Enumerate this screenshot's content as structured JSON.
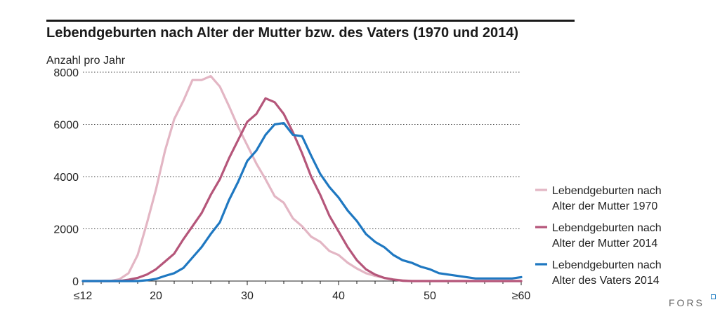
{
  "chart_data": {
    "type": "line",
    "title": "Lebendgeburten nach Alter der Mutter bzw. des Vaters (1970 und 2014)",
    "ylabel": "Anzahl pro Jahr",
    "xlabel": "",
    "ylim": [
      0,
      8000
    ],
    "xlim": [
      12,
      60
    ],
    "yticks": [
      0,
      2000,
      4000,
      6000,
      8000
    ],
    "xticks": [
      {
        "value": 12,
        "label": "≤12"
      },
      {
        "value": 20,
        "label": "20"
      },
      {
        "value": 30,
        "label": "30"
      },
      {
        "value": 40,
        "label": "40"
      },
      {
        "value": 50,
        "label": "50"
      },
      {
        "value": 60,
        "label": "≥60"
      }
    ],
    "grid": "horizontal-dotted",
    "legend_position": "right",
    "x": [
      12,
      13,
      14,
      15,
      16,
      17,
      18,
      19,
      20,
      21,
      22,
      23,
      24,
      25,
      26,
      27,
      28,
      29,
      30,
      31,
      32,
      33,
      34,
      35,
      36,
      37,
      38,
      39,
      40,
      41,
      42,
      43,
      44,
      45,
      46,
      47,
      48,
      49,
      50,
      51,
      52,
      53,
      54,
      55,
      56,
      57,
      58,
      59,
      60
    ],
    "series": [
      {
        "name": "Lebendgeburten nach Alter der Mutter 1970",
        "legend_lines": [
          "Lebendgeburten nach",
          "Alter der Mutter 1970"
        ],
        "color": "#e3b6c4",
        "values": [
          0,
          0,
          0,
          0,
          70,
          300,
          1000,
          2200,
          3500,
          5000,
          6200,
          6900,
          7700,
          7700,
          7850,
          7450,
          6700,
          5900,
          5200,
          4500,
          3900,
          3250,
          3000,
          2400,
          2100,
          1700,
          1500,
          1150,
          1000,
          700,
          480,
          300,
          200,
          120,
          60,
          30,
          0,
          0,
          0,
          0,
          0,
          0,
          0,
          0,
          0,
          0,
          0,
          0,
          0
        ]
      },
      {
        "name": "Lebendgeburten nach Alter der Mutter 2014",
        "legend_lines": [
          "Lebendgeburten nach",
          "Alter der Mutter 2014"
        ],
        "color": "#b5567a",
        "values": [
          0,
          0,
          0,
          0,
          0,
          50,
          120,
          250,
          450,
          750,
          1050,
          1600,
          2100,
          2600,
          3300,
          3900,
          4700,
          5400,
          6100,
          6400,
          7000,
          6850,
          6400,
          5700,
          4900,
          4000,
          3300,
          2500,
          1900,
          1300,
          800,
          450,
          250,
          120,
          60,
          10,
          0,
          0,
          0,
          0,
          0,
          0,
          0,
          0,
          0,
          0,
          0,
          0,
          0
        ]
      },
      {
        "name": "Lebendgeburten nach Alter des Vaters 2014",
        "legend_lines": [
          "Lebendgeburten nach",
          "Alter des Vaters 2014"
        ],
        "color": "#1f78c1",
        "values": [
          0,
          0,
          0,
          0,
          0,
          0,
          0,
          30,
          80,
          200,
          300,
          500,
          900,
          1300,
          1800,
          2250,
          3100,
          3800,
          4600,
          5000,
          5600,
          6000,
          6050,
          5600,
          5550,
          4800,
          4100,
          3600,
          3200,
          2700,
          2300,
          1800,
          1500,
          1300,
          1000,
          800,
          700,
          550,
          450,
          300,
          250,
          200,
          150,
          100,
          100,
          100,
          100,
          100,
          150
        ]
      }
    ]
  },
  "branding": {
    "logo_text": "FORS"
  }
}
